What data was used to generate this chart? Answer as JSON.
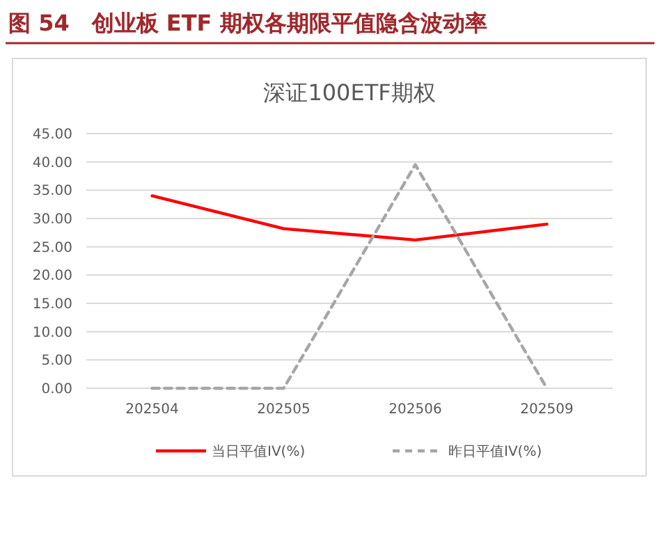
{
  "chart_data": {
    "type": "line",
    "title": "图 54　创业板 ETF 期权各期限平值隐含波动率",
    "subtitle": "深证100ETF期权",
    "categories": [
      "202504",
      "202505",
      "202506",
      "202509"
    ],
    "series": [
      {
        "name": "当日平值IV(%)",
        "color": "#ff0000",
        "values": [
          34.0,
          28.2,
          26.2,
          29.0
        ],
        "line_style": "solid"
      },
      {
        "name": "昨日平值IV(%)",
        "color": "#a6a6a6",
        "values": [
          0,
          0,
          39.5,
          0
        ],
        "line_style": "dashed"
      }
    ],
    "ylim": [
      0,
      45
    ],
    "yticks": [
      {
        "value": 0,
        "label": "0.00"
      },
      {
        "value": 5,
        "label": "5.00"
      },
      {
        "value": 10,
        "label": "10.00"
      },
      {
        "value": 15,
        "label": "15.00"
      },
      {
        "value": 20,
        "label": "20.00"
      },
      {
        "value": 25,
        "label": "25.00"
      },
      {
        "value": 30,
        "label": "30.00"
      },
      {
        "value": 35,
        "label": "35.00"
      },
      {
        "value": 40,
        "label": "40.00"
      },
      {
        "value": 45,
        "label": "45.00"
      }
    ],
    "grid": "y",
    "legend": "bottom",
    "marker": "none"
  }
}
